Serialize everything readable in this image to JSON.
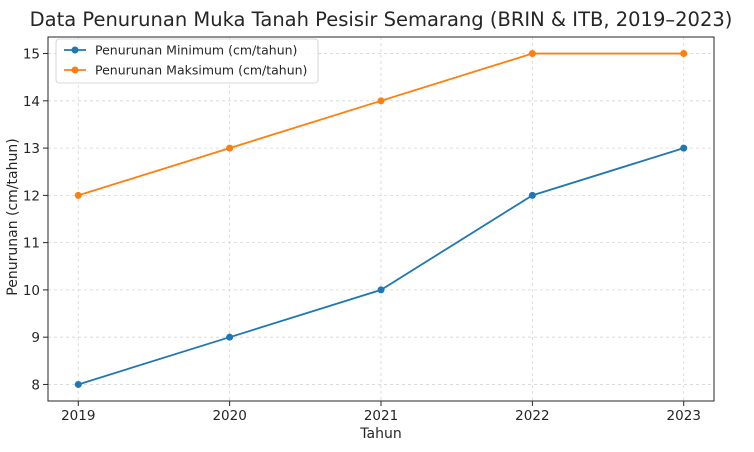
{
  "chart_data": {
    "type": "line",
    "title": "Data Penurunan Muka Tanah Pesisir Semarang (BRIN & ITB, 2019–2023)",
    "xlabel": "Tahun",
    "ylabel": "Penurunan (cm/tahun)",
    "categories": [
      "2019",
      "2020",
      "2021",
      "2022",
      "2023"
    ],
    "x": [
      2019,
      2020,
      2021,
      2022,
      2023
    ],
    "xlim": [
      2018.8,
      2023.2
    ],
    "ylim": [
      7.65,
      15.35
    ],
    "yticks": [
      8,
      9,
      10,
      11,
      12,
      13,
      14,
      15
    ],
    "grid": true,
    "legend_position": "top-left",
    "series": [
      {
        "name": "Penurunan Minimum (cm/tahun)",
        "color": "#1f77b4",
        "values": [
          8,
          9,
          10,
          12,
          13
        ]
      },
      {
        "name": "Penurunan Maksimum (cm/tahun)",
        "color": "#ff7f0e",
        "values": [
          12,
          13,
          14,
          15,
          15
        ]
      }
    ]
  }
}
